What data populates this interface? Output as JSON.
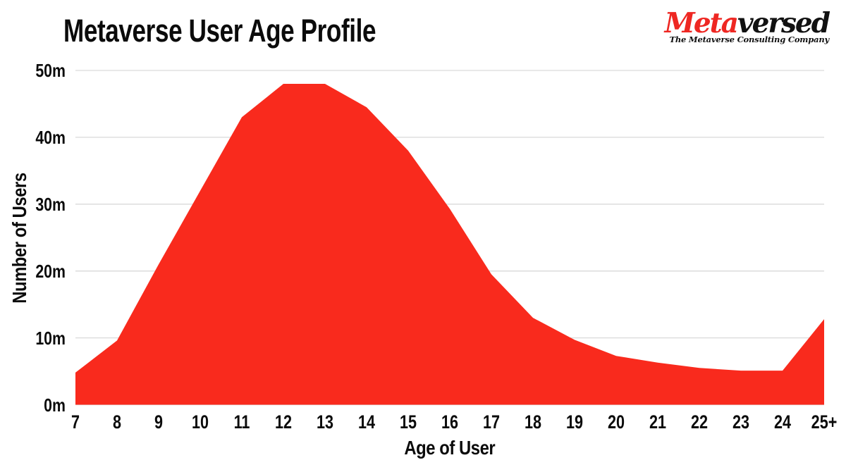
{
  "header": {
    "title": "Metaverse User Age Profile",
    "logo": {
      "part1": "Meta",
      "part2": "versed",
      "tagline": "The Metaverse Consulting Company",
      "part1_color": "#ee2722",
      "part2_color": "#111111"
    }
  },
  "chart_data": {
    "type": "area",
    "title": "Metaverse User Age Profile",
    "xlabel": "Age of User",
    "ylabel": "Number of Users",
    "unit": "millions of users",
    "categories": [
      "7",
      "8",
      "9",
      "10",
      "11",
      "12",
      "13",
      "14",
      "15",
      "16",
      "17",
      "18",
      "19",
      "20",
      "21",
      "22",
      "23",
      "24",
      "25+"
    ],
    "values": [
      4.8,
      9.6,
      21,
      32,
      43,
      48,
      48,
      44.5,
      38,
      29.3,
      19.5,
      13,
      9.7,
      7.3,
      6.3,
      5.5,
      5.1,
      5.1,
      12.8
    ],
    "ylim": [
      0,
      50
    ],
    "yticks": [
      "0m",
      "10m",
      "20m",
      "30m",
      "40m",
      "50m"
    ],
    "grid": true,
    "legend": "none",
    "area_color": "#f92a1d",
    "gridline_color": "#d9d9d9",
    "text_color": "#0b0b0b"
  }
}
